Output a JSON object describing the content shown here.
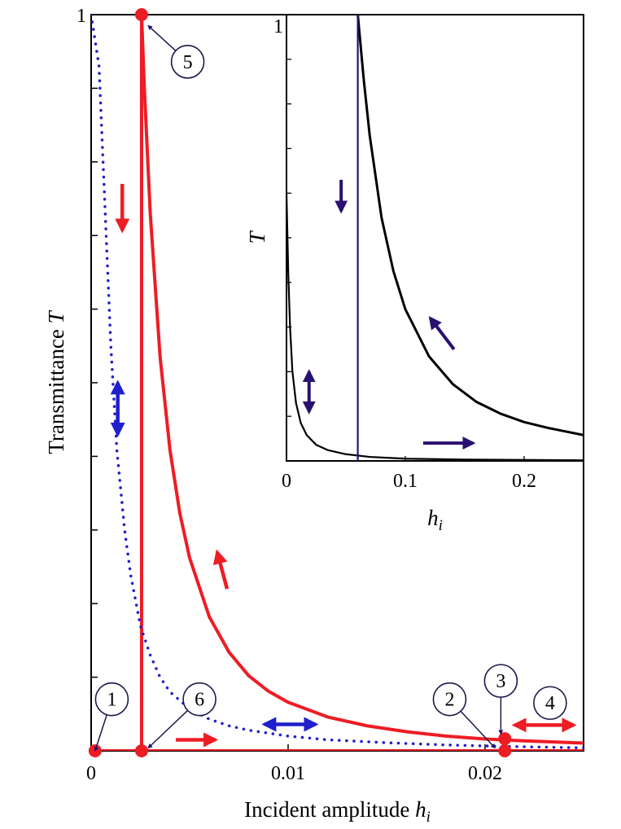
{
  "chart_data": [
    {
      "id": "main",
      "type": "line",
      "title": "",
      "xlabel": "Incident amplitude",
      "xlabel_var": "h",
      "xlabel_sub": "i",
      "ylabel": "Transmittance",
      "ylabel_var": "T",
      "xlim": [
        0,
        0.025
      ],
      "ylim": [
        0,
        1
      ],
      "xticks": [
        0,
        0.01,
        0.02
      ],
      "xtick_labels": [
        "0",
        "0.01",
        "0.02"
      ],
      "yticks": [
        0,
        0.1,
        0.2,
        0.3,
        0.4,
        0.5,
        0.6,
        0.7,
        0.8,
        0.9,
        1
      ],
      "ytick_labels": [
        "",
        "",
        "",
        "",
        "",
        "",
        "",
        "",
        "",
        "",
        "1"
      ],
      "series": [
        {
          "name": "stable branch (red)",
          "style": "solid",
          "color": "#ee1c25",
          "x": [
            0.00256,
            0.0027,
            0.003,
            0.0035,
            0.004,
            0.0045,
            0.005,
            0.006,
            0.007,
            0.008,
            0.009,
            0.01,
            0.012,
            0.014,
            0.016,
            0.018,
            0.02,
            0.022,
            0.025
          ],
          "y": [
            1.0,
            0.9,
            0.73,
            0.535,
            0.409,
            0.323,
            0.262,
            0.182,
            0.134,
            0.102,
            0.081,
            0.066,
            0.046,
            0.034,
            0.026,
            0.02,
            0.016,
            0.0135,
            0.0105
          ]
        },
        {
          "name": "low branch (red)",
          "style": "solid",
          "color": "#ee1c25",
          "x": [
            0.0002,
            0.025
          ],
          "y": [
            0.0,
            0.0
          ]
        },
        {
          "name": "jump (red)",
          "style": "solid",
          "color": "#ee1c25",
          "x": [
            0.00256,
            0.00256
          ],
          "y": [
            0.0,
            1.0
          ]
        },
        {
          "name": "reference (blue dotted)",
          "style": "dotted",
          "color": "#1f1fcc",
          "x": [
            0.0,
            0.0004,
            0.0007,
            0.001,
            0.0013,
            0.0017,
            0.002,
            0.0025,
            0.003,
            0.0035,
            0.004,
            0.005,
            0.006,
            0.007,
            0.008,
            0.01,
            0.012,
            0.015,
            0.018,
            0.021,
            0.025
          ],
          "y": [
            1.0,
            0.93,
            0.74,
            0.55,
            0.41,
            0.3,
            0.24,
            0.17,
            0.13,
            0.1,
            0.08,
            0.057,
            0.043,
            0.034,
            0.028,
            0.02,
            0.015,
            0.011,
            0.008,
            0.006,
            0.004
          ]
        }
      ],
      "points": [
        {
          "x": 0.0002,
          "y": 0.0,
          "label": "1"
        },
        {
          "x": 0.021,
          "y": 0.0,
          "label": "2"
        },
        {
          "x": 0.021,
          "y": 0.0165,
          "label": "3"
        },
        {
          "x": 0.00256,
          "y": 1.0,
          "label": "5"
        },
        {
          "x": 0.00256,
          "y": 0.0,
          "label": "6"
        }
      ],
      "annotations": [
        {
          "label": "1",
          "circle_at": [
            0.00105,
            0.07
          ],
          "points_to": [
            0.0002,
            0.0
          ]
        },
        {
          "label": "6",
          "circle_at": [
            0.0055,
            0.07
          ],
          "points_to": [
            0.0029,
            0.004
          ]
        },
        {
          "label": "2",
          "circle_at": [
            0.0182,
            0.07
          ],
          "points_to": [
            0.0205,
            0.004
          ]
        },
        {
          "label": "3",
          "circle_at": [
            0.0208,
            0.095
          ],
          "points_to": [
            0.0208,
            0.023
          ]
        },
        {
          "label": "4",
          "circle_at": [
            0.0233,
            0.065
          ],
          "points_to": null
        },
        {
          "label": "5",
          "circle_at": [
            0.0049,
            0.936
          ],
          "points_to": [
            0.0029,
            0.985
          ]
        }
      ],
      "arrows": [
        {
          "color": "#ee1c25",
          "head": "end",
          "from": [
            0.00158,
            0.77
          ],
          "to": [
            0.00158,
            0.707
          ]
        },
        {
          "color": "#1f1fcc",
          "head": "both",
          "from": [
            0.00135,
            0.5
          ],
          "to": [
            0.00135,
            0.43
          ]
        },
        {
          "color": "#ee1c25",
          "head": "end",
          "from": [
            0.0069,
            0.22
          ],
          "to": [
            0.0064,
            0.27
          ]
        },
        {
          "color": "#ee1c25",
          "head": "end",
          "from": [
            0.0043,
            0.015
          ],
          "to": [
            0.0063,
            0.015
          ]
        },
        {
          "color": "#1f1fcc",
          "head": "both",
          "from": [
            0.0088,
            0.036
          ],
          "to": [
            0.0114,
            0.036
          ]
        },
        {
          "color": "#ee1c25",
          "head": "both",
          "from": [
            0.0215,
            0.035
          ],
          "to": [
            0.0245,
            0.035
          ]
        }
      ]
    },
    {
      "id": "inset",
      "type": "line",
      "title": "",
      "xlabel": "",
      "xlabel_var": "h",
      "xlabel_sub": "i",
      "ylabel": "",
      "ylabel_var": "T",
      "xlim": [
        0,
        0.25
      ],
      "ylim": [
        0,
        1
      ],
      "xticks": [
        0,
        0.1,
        0.2
      ],
      "xtick_labels": [
        "0",
        "0.1",
        "0.2"
      ],
      "yticks": [
        0.1,
        0.2,
        0.3,
        0.4,
        0.5,
        0.6,
        0.7,
        0.8,
        0.9,
        1
      ],
      "ytick_labels": [
        "",
        "",
        "",
        "",
        "",
        "",
        "",
        "",
        "",
        "1"
      ],
      "series": [
        {
          "name": "upper branch (black)",
          "style": "solid",
          "color": "#000000",
          "x": [
            0.06,
            0.065,
            0.07,
            0.08,
            0.09,
            0.1,
            0.12,
            0.14,
            0.16,
            0.18,
            0.2,
            0.22,
            0.25
          ],
          "y": [
            1.0,
            0.855,
            0.73,
            0.545,
            0.425,
            0.34,
            0.234,
            0.172,
            0.132,
            0.106,
            0.087,
            0.074,
            0.058
          ]
        },
        {
          "name": "lower branch (black)",
          "style": "solid",
          "color": "#000000",
          "x": [
            0.0,
            0.0015,
            0.003,
            0.005,
            0.008,
            0.012,
            0.017,
            0.025,
            0.035,
            0.05,
            0.07,
            0.1,
            0.15,
            0.25
          ],
          "y": [
            0.6,
            0.42,
            0.3,
            0.2,
            0.13,
            0.085,
            0.058,
            0.036,
            0.024,
            0.015,
            0.009,
            0.005,
            0.003,
            0.0015
          ]
        },
        {
          "name": "jump (purple)",
          "style": "solid",
          "color": "#2a1070",
          "x": [
            0.06,
            0.06
          ],
          "y": [
            0.0,
            1.0
          ]
        }
      ],
      "arrows": [
        {
          "color": "#2a1070",
          "head": "end",
          "from": [
            0.046,
            0.63
          ],
          "to": [
            0.046,
            0.56
          ]
        },
        {
          "color": "#2a1070",
          "head": "end",
          "from": [
            0.141,
            0.25
          ],
          "to": [
            0.121,
            0.32
          ]
        },
        {
          "color": "#2a1070",
          "head": "both",
          "from": [
            0.019,
            0.2
          ],
          "to": [
            0.019,
            0.11
          ]
        },
        {
          "color": "#2a1070",
          "head": "end",
          "from": [
            0.115,
            0.04
          ],
          "to": [
            0.157,
            0.04
          ]
        }
      ]
    }
  ]
}
